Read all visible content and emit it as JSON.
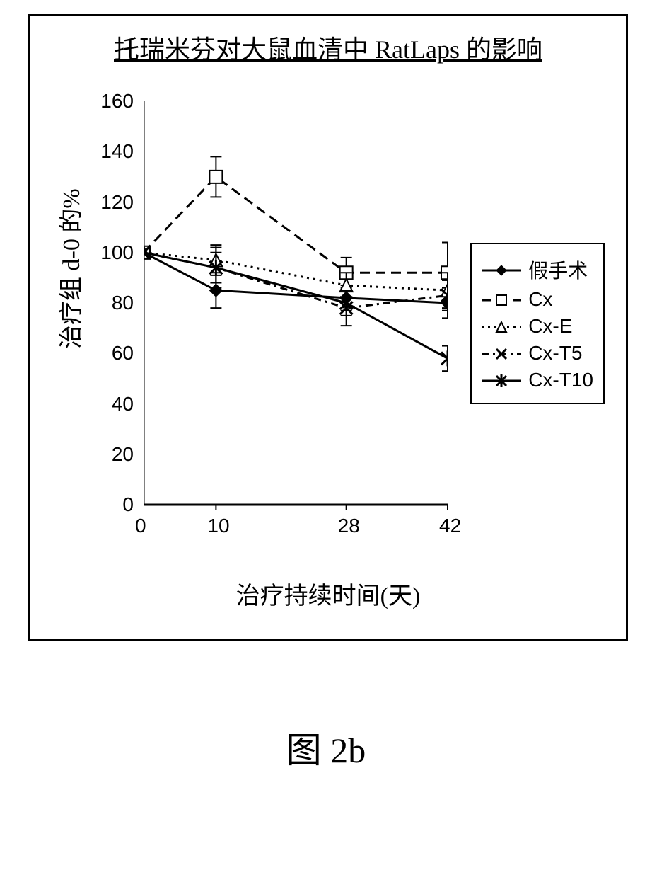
{
  "title": "托瑞米芬对大鼠血清中 RatLaps 的影响",
  "caption": "图 2b",
  "ylabel": "治疗组 d-0 的%",
  "xlabel": "治疗持续时间(天)",
  "chart": {
    "type": "line-errorbar",
    "xlim": [
      0,
      42
    ],
    "ylim": [
      0,
      160
    ],
    "xticks": [
      0,
      10,
      28,
      42
    ],
    "yticks": [
      0,
      20,
      40,
      60,
      80,
      100,
      120,
      140,
      160
    ],
    "xtick_labels": [
      "0",
      "10",
      "28",
      "42"
    ],
    "ytick_labels": [
      "0",
      "20",
      "40",
      "60",
      "80",
      "100",
      "120",
      "140",
      "160"
    ],
    "tick_fontsize": 28,
    "label_fontsize": 34,
    "title_fontsize": 36,
    "line_width": 3,
    "err_cap_width": 16,
    "axis_color": "#000000",
    "background_color": "#ffffff",
    "series": [
      {
        "id": "sham",
        "label": "假手术",
        "marker": "diamond",
        "dash": "solid",
        "color": "#000000",
        "x": [
          0,
          10,
          28,
          42
        ],
        "y": [
          100,
          85,
          82,
          80
        ],
        "err": [
          0,
          7,
          5,
          6
        ]
      },
      {
        "id": "cx",
        "label": "Cx",
        "marker": "square",
        "dash": "longdash",
        "color": "#000000",
        "x": [
          0,
          10,
          28,
          42
        ],
        "y": [
          100,
          130,
          92,
          92
        ],
        "err": [
          0,
          8,
          6,
          12
        ]
      },
      {
        "id": "cx-e",
        "label": "Cx-E",
        "marker": "triangle",
        "dash": "dot",
        "color": "#000000",
        "x": [
          0,
          10,
          28,
          42
        ],
        "y": [
          100,
          97,
          87,
          85
        ],
        "err": [
          0,
          6,
          5,
          7
        ]
      },
      {
        "id": "cx-t5",
        "label": "Cx-T5",
        "marker": "x",
        "dash": "dashdot",
        "color": "#000000",
        "x": [
          0,
          10,
          28,
          42
        ],
        "y": [
          100,
          94,
          78,
          83
        ],
        "err": [
          0,
          8,
          7,
          6
        ]
      },
      {
        "id": "cx-t10",
        "label": "Cx-T10",
        "marker": "asterisk",
        "dash": "solid",
        "color": "#000000",
        "x": [
          0,
          10,
          28,
          42
        ],
        "y": [
          100,
          94,
          80,
          58
        ],
        "err": [
          0,
          6,
          5,
          5
        ]
      }
    ]
  },
  "legend_order": [
    "sham",
    "cx",
    "cx-e",
    "cx-t5",
    "cx-t10"
  ]
}
